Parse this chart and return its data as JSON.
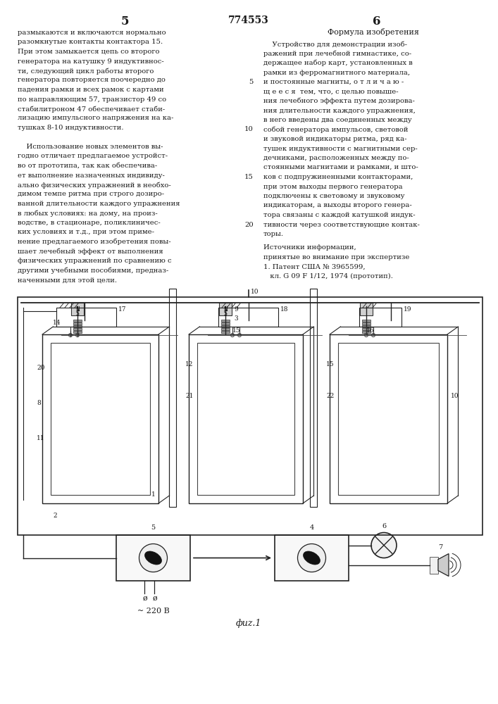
{
  "page_left_number": "5",
  "page_center_number": "774553",
  "page_right_number": "6",
  "background_color": "#ffffff",
  "text_color": "#1a1a1a",
  "left_column_text": [
    "размыкаются и включаются нормально",
    "разомкнутые контакты контактора 15.",
    "При этом замыкается цепь со второго",
    "генератора на катушку 9 индуктивнос-",
    "ти, следующий цикл работы второго",
    "генератора повторяется поочередно до",
    "падения рамки и всех рамок с картами",
    "по направляющим 57, транзистор 49 со",
    "стабилитроном 47 обеспечивает стаби-",
    "лизацию импульсного напряжения на ка-",
    "тушках 8-10 индуктивности.",
    "",
    "    Использование новых элементов вы-",
    "годно отличает предлагаемое устройст-",
    "во от прототипа, так как обеспечива-",
    "ет выполнение назначенных индивиду-",
    "ально физических упражнений в необхо-",
    "димом темпе ритма при строго дозиро-",
    "ванной длительности каждого упражнения",
    "в любых условиях: на дому, на произ-",
    "водстве, в стационаре, поликлиничес-",
    "ких условиях и т.д., при этом приме-",
    "нение предлагаемого изобретения повы-",
    "шает лечебный эффект от выполнения",
    "физических упражнений по сравнению с",
    "другими учебными пособиями, предназ-",
    "наченными для этой цели."
  ],
  "right_column_header": "Формула изобретения",
  "right_column_text": [
    "    Устройство для демонстрации изоб-",
    "ражений при лечебной гимнастике, со-",
    "держащее набор карт, установленных в",
    "рамки из ферромагнитного материала,",
    "и постоянные магниты, о т л и ч а ю -",
    "щ е е с я  тем, что, с целью повыше-",
    "ния лечебного эффекта путем дозирова-",
    "ния длительности каждого упражнения,",
    "в него введены два соединенных между",
    "собой генератора импульсов, световой",
    "и звуковой индикаторы ритма, ряд ка-",
    "тушек индуктивности с магнитными сер-",
    "дечниками, расположенных между по-",
    "стоянными магнитами и рамками, и што-",
    "ков с подпружиненными контакторами,",
    "при этом выходы первого генератора",
    "подключены к световому и звуковому",
    "индикаторам, а выходы второго генера-",
    "тора связаны с каждой катушкой индук-",
    "тивности через соответствующие контак-",
    "торы."
  ],
  "sources_header": "Источники информации,",
  "sources_subheader": "принятые во внимание при экспертизе",
  "source1_line1": "1. Патент США № 3965599,",
  "source1_line2": "   кл. G 09 F 1/12, 1974 (прототип).",
  "fig_label": "фиz.1",
  "voltage_label": "~ 220 В",
  "line_numbers": {
    "4": "5",
    "9": "10",
    "14": "15",
    "19": "20"
  }
}
